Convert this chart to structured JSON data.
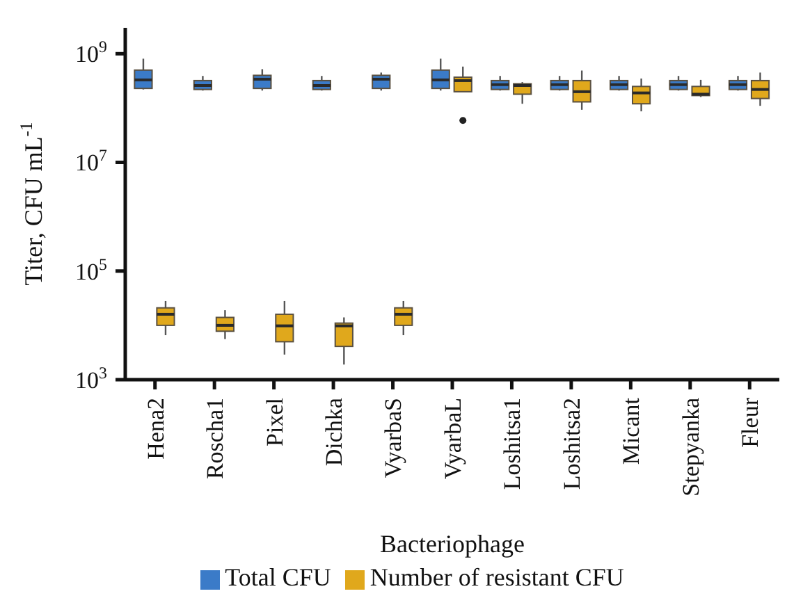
{
  "chart_data": {
    "type": "box",
    "xlabel": "Bacteriophage",
    "ylabel": "Titer, CFU mL$^{-1}$",
    "categories": [
      "Hena2",
      "Roscha1",
      "Pixel",
      "Dichka",
      "VyarbaS",
      "VyarbaL",
      "Loshitsa1",
      "Loshitsa2",
      "Micant",
      "Stepyanka",
      "Fleur"
    ],
    "log": true,
    "ylim": [
      1000,
      3000000000
    ],
    "yticks": [
      {
        "value": 1000,
        "label": "10$^{3}$"
      },
      {
        "value": 100000,
        "label": "10$^{5}$"
      },
      {
        "value": 10000000,
        "label": "10$^{7}$"
      },
      {
        "value": 1000000000,
        "label": "10$^{9}$"
      }
    ],
    "legend": "bottom",
    "series": [
      {
        "name": "Total CFU",
        "color": "#3b7bc8",
        "boxes": [
          {
            "low": 220000000,
            "q1": 230000000,
            "median": 330000000,
            "q3": 500000000,
            "high": 810000000
          },
          {
            "low": 210000000,
            "q1": 220000000,
            "median": 260000000,
            "q3": 320000000,
            "high": 390000000
          },
          {
            "low": 210000000,
            "q1": 230000000,
            "median": 340000000,
            "q3": 400000000,
            "high": 520000000
          },
          {
            "low": 210000000,
            "q1": 220000000,
            "median": 260000000,
            "q3": 320000000,
            "high": 390000000
          },
          {
            "low": 210000000,
            "q1": 230000000,
            "median": 340000000,
            "q3": 400000000,
            "high": 450000000
          },
          {
            "low": 210000000,
            "q1": 230000000,
            "median": 330000000,
            "q3": 500000000,
            "high": 810000000
          },
          {
            "low": 210000000,
            "q1": 220000000,
            "median": 270000000,
            "q3": 320000000,
            "high": 390000000
          },
          {
            "low": 210000000,
            "q1": 220000000,
            "median": 270000000,
            "q3": 320000000,
            "high": 390000000
          },
          {
            "low": 210000000,
            "q1": 220000000,
            "median": 270000000,
            "q3": 320000000,
            "high": 390000000
          },
          {
            "low": 210000000,
            "q1": 220000000,
            "median": 270000000,
            "q3": 320000000,
            "high": 390000000
          },
          {
            "low": 210000000,
            "q1": 220000000,
            "median": 270000000,
            "q3": 320000000,
            "high": 390000000
          }
        ]
      },
      {
        "name": "Number of resistant CFU",
        "color": "#e0a81c",
        "boxes": [
          {
            "low": 6600,
            "q1": 10000,
            "median": 16000,
            "q3": 21000,
            "high": 28000
          },
          {
            "low": 5600,
            "q1": 7800,
            "median": 10000,
            "q3": 14000,
            "high": 19000
          },
          {
            "low": 2900,
            "q1": 5000,
            "median": 9800,
            "q3": 16000,
            "high": 28000
          },
          {
            "low": 1900,
            "q1": 4100,
            "median": 9800,
            "q3": 11000,
            "high": 14000
          },
          {
            "low": 6600,
            "q1": 10000,
            "median": 16000,
            "q3": 21000,
            "high": 28000
          },
          {
            "low": 200000000,
            "q1": 200000000,
            "median": 320000000,
            "q3": 370000000,
            "high": 580000000,
            "outliers": [
              59000000
            ]
          },
          {
            "low": 120000000,
            "q1": 180000000,
            "median": 260000000,
            "q3": 280000000,
            "high": 300000000
          },
          {
            "low": 93000000,
            "q1": 130000000,
            "median": 200000000,
            "q3": 320000000,
            "high": 490000000
          },
          {
            "low": 87000000,
            "q1": 120000000,
            "median": 190000000,
            "q3": 250000000,
            "high": 350000000
          },
          {
            "low": 160000000,
            "q1": 170000000,
            "median": 180000000,
            "q3": 250000000,
            "high": 330000000
          },
          {
            "low": 110000000,
            "q1": 150000000,
            "median": 220000000,
            "q3": 320000000,
            "high": 450000000
          }
        ]
      }
    ]
  }
}
